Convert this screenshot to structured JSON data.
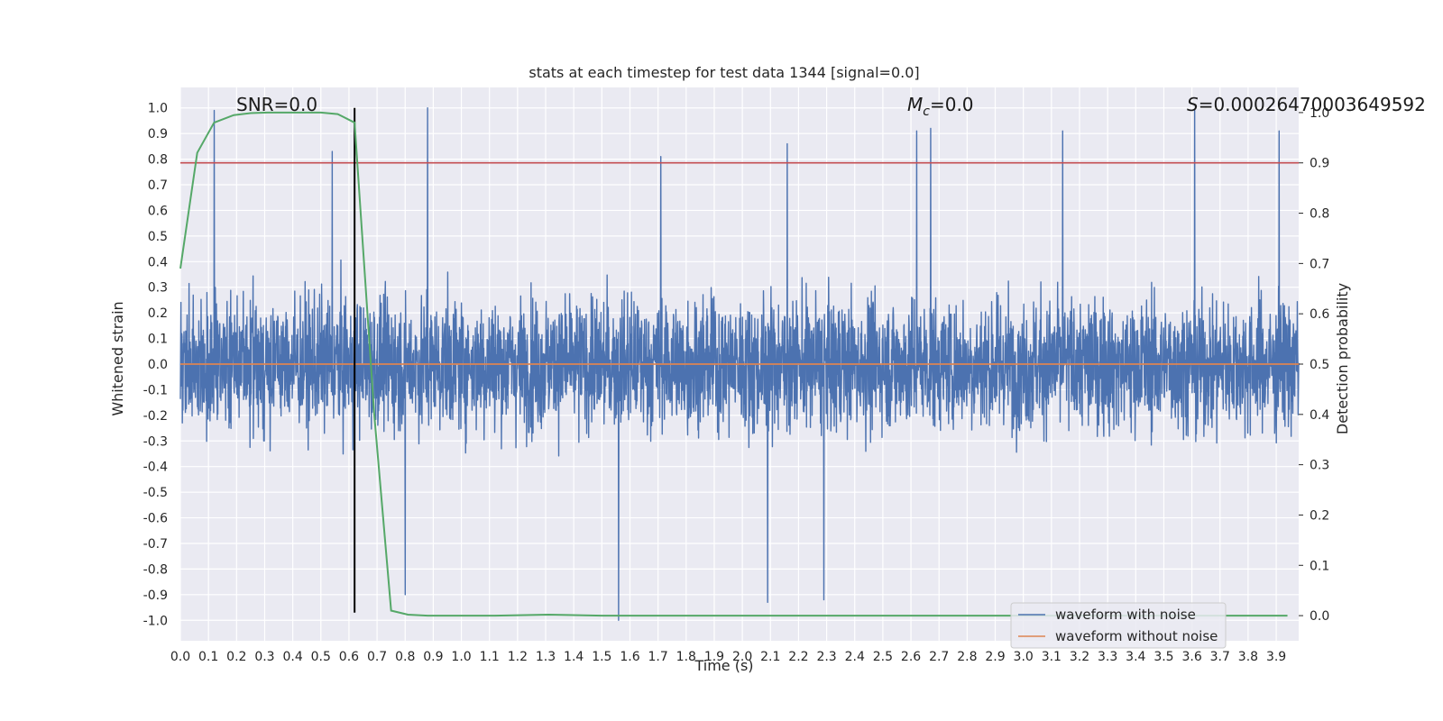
{
  "chart_data": {
    "type": "line",
    "title": "stats at each timestep for test data 1344 [signal=0.0]",
    "xlabel": "Time (s)",
    "ylabel": "Whitened strain",
    "y2label": "Detection probability",
    "xlim": [
      0.0,
      3.98
    ],
    "ylim": [
      -1.08,
      1.08
    ],
    "y2lim": [
      -0.05,
      1.05
    ],
    "xticks": [
      "0.0",
      "0.1",
      "0.2",
      "0.3",
      "0.4",
      "0.5",
      "0.6",
      "0.7",
      "0.8",
      "0.9",
      "1.0",
      "1.1",
      "1.2",
      "1.3",
      "1.4",
      "1.5",
      "1.6",
      "1.7",
      "1.8",
      "1.9",
      "2.0",
      "2.1",
      "2.2",
      "2.3",
      "2.4",
      "2.5",
      "2.6",
      "2.7",
      "2.8",
      "2.9",
      "3.0",
      "3.1",
      "3.2",
      "3.3",
      "3.4",
      "3.5",
      "3.6",
      "3.7",
      "3.8",
      "3.9"
    ],
    "yticks": [
      "1.0",
      "0.9",
      "0.8",
      "0.7",
      "0.6",
      "0.5",
      "0.4",
      "0.3",
      "0.2",
      "0.1",
      "0.0",
      "-0.1",
      "-0.2",
      "-0.3",
      "-0.4",
      "-0.5",
      "-0.6",
      "-0.7",
      "-0.8",
      "-0.9",
      "-1.0"
    ],
    "y2ticks": [
      "1.0",
      "0.9",
      "0.8",
      "0.7",
      "0.6",
      "0.5",
      "0.4",
      "0.3",
      "0.2",
      "0.1",
      "0.0"
    ],
    "annotations": {
      "snr": "SNR=0.0",
      "mc_symbol": "M",
      "mc_sub": "c",
      "mc_value": "=0.0",
      "s_symbol": "S",
      "s_value": "=0.00026470003649592"
    },
    "series": [
      {
        "name": "waveform with noise",
        "color": "#4c72b0",
        "kind": "noise",
        "sample_count": 4000,
        "amplitude_envelope": 1.0,
        "notable_peaks": [
          {
            "x": 0.12,
            "y": 0.99
          },
          {
            "x": 0.54,
            "y": 0.83
          },
          {
            "x": 0.88,
            "y": 1.0
          },
          {
            "x": 1.71,
            "y": 0.81
          },
          {
            "x": 2.16,
            "y": 0.86
          },
          {
            "x": 2.62,
            "y": 0.91
          },
          {
            "x": 2.67,
            "y": 0.92
          },
          {
            "x": 3.14,
            "y": 0.91
          },
          {
            "x": 3.61,
            "y": 0.99
          },
          {
            "x": 3.91,
            "y": 0.91
          },
          {
            "x": 1.56,
            "y": -1.0
          },
          {
            "x": 2.09,
            "y": -0.93
          },
          {
            "x": 0.8,
            "y": -0.9
          },
          {
            "x": 2.29,
            "y": -0.92
          }
        ]
      },
      {
        "name": "waveform without noise",
        "color": "#dd8452",
        "x": [
          0.0,
          3.98
        ],
        "y": [
          0.0,
          0.0
        ]
      },
      {
        "name": "detection probability",
        "color": "#55a868",
        "axis": "right",
        "x": [
          0.0,
          0.06,
          0.12,
          0.19,
          0.25,
          0.31,
          0.38,
          0.44,
          0.5,
          0.56,
          0.62,
          0.69,
          0.75,
          0.81,
          0.88,
          0.94,
          1.0,
          1.06,
          1.12,
          1.31,
          1.5,
          1.75,
          2.0,
          2.5,
          3.0,
          3.5,
          3.94
        ],
        "y": [
          0.69,
          0.92,
          0.98,
          0.995,
          0.999,
          1.0,
          1.0,
          1.0,
          1.0,
          0.997,
          0.98,
          0.4,
          0.01,
          0.002,
          0.0,
          0.0,
          0.0,
          0.0,
          0.0,
          0.002,
          0.0,
          0.0,
          0.0,
          0.0,
          0.0,
          0.0,
          0.0
        ]
      }
    ],
    "reference_lines": [
      {
        "type": "horizontal",
        "axis": "right",
        "value": 0.9,
        "color": "#c44e52"
      },
      {
        "type": "vertical",
        "x": 0.62,
        "y_from": -0.97,
        "y_to": 1.0,
        "color": "#000000"
      }
    ],
    "legend": {
      "location": "lower-right",
      "entries": [
        {
          "label": "waveform with noise",
          "color": "#4c72b0"
        },
        {
          "label": "waveform without noise",
          "color": "#dd8452"
        }
      ]
    },
    "grid": true
  }
}
